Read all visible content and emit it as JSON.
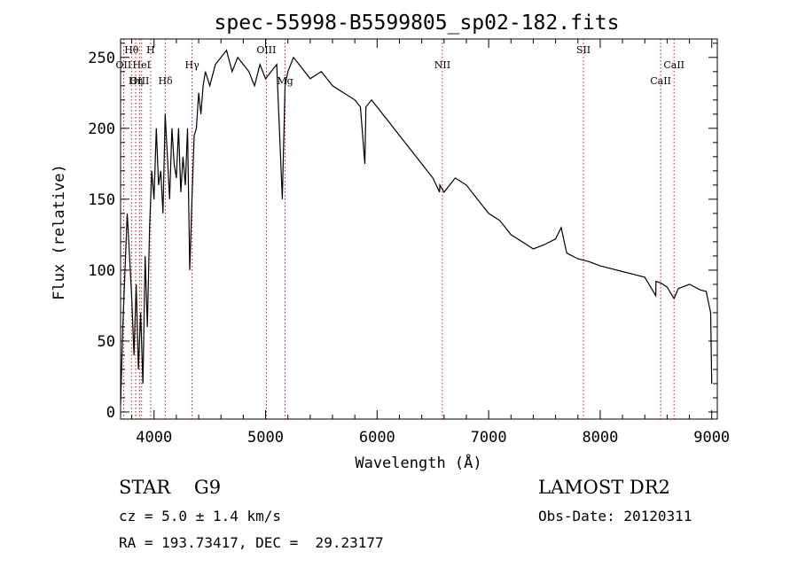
{
  "chart_data": {
    "type": "line",
    "title": "spec-55998-B5599805_sp02-182.fits",
    "xlabel": "Wavelength (Å)",
    "ylabel": "Flux (relative)",
    "xlim": [
      3700,
      9050
    ],
    "ylim": [
      -5,
      263
    ],
    "xticks": [
      4000,
      5000,
      6000,
      7000,
      8000,
      9000
    ],
    "yticks": [
      0,
      50,
      100,
      150,
      200,
      250
    ],
    "grid": false,
    "series": [
      {
        "x": [
          3700,
          3720,
          3740,
          3760,
          3780,
          3800,
          3820,
          3840,
          3860,
          3880,
          3900,
          3920,
          3940,
          3960,
          3980,
          4000,
          4020,
          4040,
          4060,
          4080,
          4100,
          4120,
          4140,
          4160,
          4180,
          4200,
          4220,
          4240,
          4260,
          4280,
          4300,
          4320,
          4340,
          4360,
          4380,
          4400,
          4420,
          4440,
          4460,
          4480,
          4500,
          4550,
          4600,
          4650,
          4700,
          4750,
          4800,
          4850,
          4900,
          4950,
          5000,
          5050,
          5100,
          5150,
          5175,
          5200,
          5250,
          5300,
          5400,
          5500,
          5600,
          5700,
          5800,
          5850,
          5890,
          5900,
          5950,
          6000,
          6100,
          6200,
          6300,
          6400,
          6500,
          6560,
          6563,
          6600,
          6700,
          6800,
          6900,
          7000,
          7100,
          7200,
          7300,
          7400,
          7500,
          7600,
          7650,
          7700,
          7800,
          7900,
          8000,
          8100,
          8200,
          8300,
          8400,
          8498,
          8500,
          8542,
          8600,
          8662,
          8700,
          8800,
          8850,
          8900,
          8950,
          8990,
          9000
        ],
        "y": [
          5,
          60,
          100,
          140,
          110,
          80,
          40,
          90,
          30,
          70,
          20,
          110,
          60,
          130,
          170,
          150,
          200,
          160,
          170,
          140,
          210,
          180,
          150,
          200,
          175,
          165,
          200,
          155,
          180,
          160,
          200,
          100,
          150,
          195,
          200,
          225,
          210,
          230,
          240,
          235,
          230,
          245,
          250,
          255,
          240,
          250,
          245,
          240,
          230,
          245,
          235,
          240,
          245,
          150,
          230,
          240,
          250,
          245,
          235,
          240,
          230,
          225,
          220,
          215,
          175,
          215,
          220,
          215,
          205,
          195,
          185,
          175,
          165,
          155,
          160,
          155,
          165,
          160,
          150,
          140,
          135,
          125,
          120,
          115,
          118,
          122,
          130,
          112,
          108,
          106,
          103,
          101,
          99,
          97,
          95,
          82,
          92,
          91,
          88,
          80,
          87,
          90,
          88,
          86,
          85,
          70,
          20
        ]
      }
    ],
    "line_markers": [
      {
        "label": "Hθ",
        "x": 3798,
        "row": 0
      },
      {
        "label": "H",
        "x": 3970,
        "row": 0
      },
      {
        "label": "OII",
        "x": 3727,
        "row": 1
      },
      {
        "label": "HeI",
        "x": 3889,
        "row": 1
      },
      {
        "label": "OIII",
        "x": 3870,
        "row": 2
      },
      {
        "label": "Hη",
        "x": 3835,
        "row": 2
      },
      {
        "label": "Hδ",
        "x": 4102,
        "row": 2
      },
      {
        "label": "Hγ",
        "x": 4341,
        "row": 1
      },
      {
        "label": "OIII",
        "x": 5007,
        "row": 0
      },
      {
        "label": "Mg",
        "x": 5175,
        "row": 2
      },
      {
        "label": "NII",
        "x": 6585,
        "row": 1
      },
      {
        "label": "SII",
        "x": 7850,
        "row": 0
      },
      {
        "label": "CaII",
        "x": 8542,
        "row": 2
      },
      {
        "label": "CaII",
        "x": 8662,
        "row": 1
      }
    ]
  },
  "info": {
    "object_class": "STAR    G9",
    "survey": "LAMOST DR2",
    "cz": "cz = 5.0 ± 1.4 km/s",
    "obs_date": "Obs-Date: 20120311",
    "coords": "RA = 193.73417, DEC =  29.23177"
  },
  "colors": {
    "axis": "#000000",
    "spectrum": "#000000",
    "marker": "#c00000"
  }
}
